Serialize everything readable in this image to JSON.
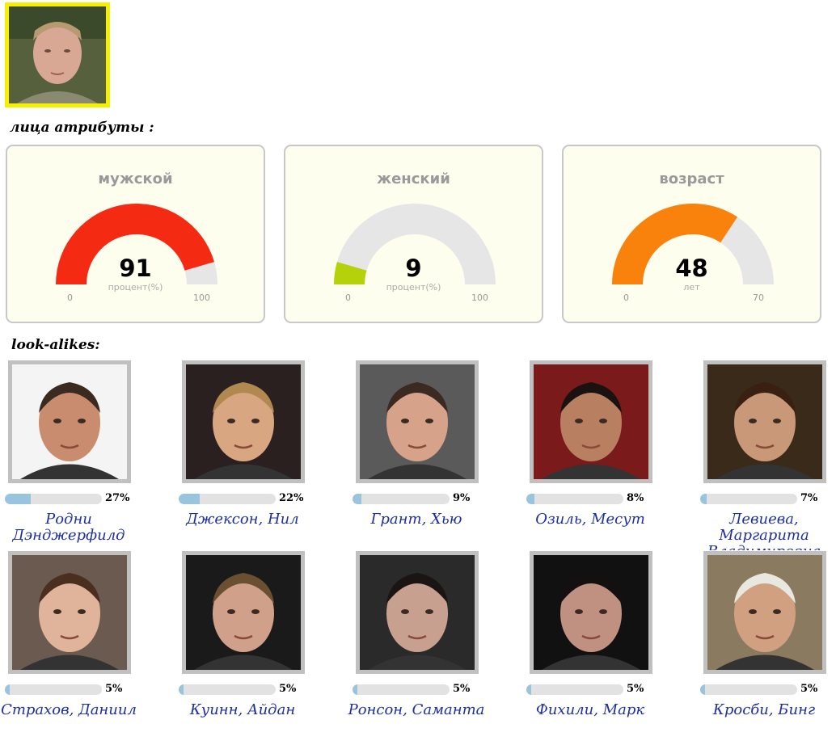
{
  "headings": {
    "attributes": "лица атрибуты :",
    "look_alikes": "look-alikes:"
  },
  "gauges": [
    {
      "title": "мужской",
      "value": "91",
      "unit": "процент(%)",
      "min": "0",
      "max": "100",
      "fraction": 0.91,
      "color": "#f52a12"
    },
    {
      "title": "женский",
      "value": "9",
      "unit": "процент(%)",
      "min": "0",
      "max": "100",
      "fraction": 0.09,
      "color": "#b5d10a"
    },
    {
      "title": "возраст",
      "value": "48",
      "unit": "лет",
      "min": "0",
      "max": "70",
      "fraction": 0.6857,
      "color": "#f8820c"
    }
  ],
  "look_alikes": [
    {
      "name": "Родни Дэнджерфилд",
      "percent": "27%",
      "fill": 0.27
    },
    {
      "name": "Джексон, Нил",
      "percent": "22%",
      "fill": 0.22
    },
    {
      "name": "Грант, Хью",
      "percent": "9%",
      "fill": 0.09
    },
    {
      "name": "Озиль, Месут",
      "percent": "8%",
      "fill": 0.08
    },
    {
      "name": "Левиева, Маргарита Владимировна",
      "percent": "7%",
      "fill": 0.07
    },
    {
      "name": "Страхов, Даниил",
      "percent": "5%",
      "fill": 0.05
    },
    {
      "name": "Куинн, Айдан",
      "percent": "5%",
      "fill": 0.05
    },
    {
      "name": "Ронсон, Саманта",
      "percent": "5%",
      "fill": 0.05
    },
    {
      "name": "Фихили, Марк",
      "percent": "5%",
      "fill": 0.05
    },
    {
      "name": "Кросби, Бинг",
      "percent": "5%",
      "fill": 0.05
    }
  ]
}
